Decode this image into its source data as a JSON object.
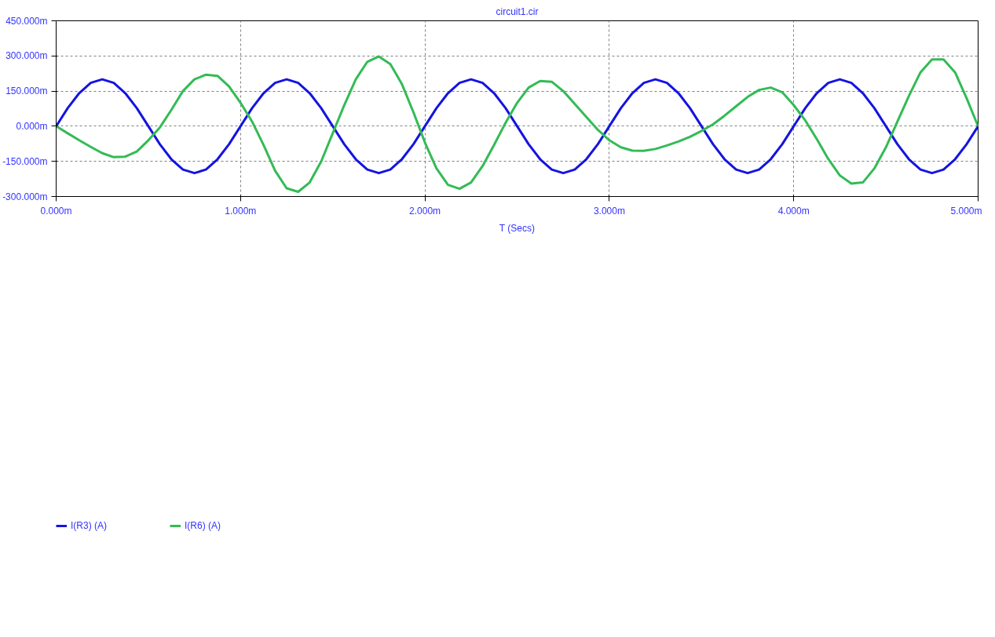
{
  "chart_data": {
    "type": "line",
    "title": "circuit1.cir",
    "xlabel": "T (Secs)",
    "x": [
      0,
      0.0625,
      0.125,
      0.1875,
      0.25,
      0.3125,
      0.375,
      0.4375,
      0.5,
      0.5625,
      0.625,
      0.6875,
      0.75,
      0.8125,
      0.875,
      0.9375,
      1,
      1.0625,
      1.125,
      1.1875,
      1.25,
      1.3125,
      1.375,
      1.4375,
      1.5,
      1.5625,
      1.625,
      1.6875,
      1.75,
      1.8125,
      1.875,
      1.9375,
      2,
      2.0625,
      2.125,
      2.1875,
      2.25,
      2.3125,
      2.375,
      2.4375,
      2.5,
      2.5625,
      2.625,
      2.6875,
      2.75,
      2.8125,
      2.875,
      2.9375,
      3,
      3.0625,
      3.125,
      3.1875,
      3.25,
      3.3125,
      3.375,
      3.4375,
      3.5,
      3.5625,
      3.625,
      3.6875,
      3.75,
      3.8125,
      3.875,
      3.9375,
      4,
      4.0625,
      4.125,
      4.1875,
      4.25,
      4.3125,
      4.375,
      4.4375,
      4.5,
      4.5625,
      4.625,
      4.6875,
      4.75,
      4.8125,
      4.875,
      4.9375,
      5
    ],
    "series": [
      {
        "name": "I(R3) (A)",
        "color": "#1414e0",
        "values": [
          0,
          77,
          141,
          185,
          200,
          185,
          141,
          77,
          0,
          -77,
          -141,
          -185,
          -200,
          -185,
          -141,
          -77,
          0,
          77,
          141,
          185,
          200,
          185,
          141,
          77,
          0,
          -77,
          -141,
          -185,
          -200,
          -185,
          -141,
          -77,
          0,
          77,
          141,
          185,
          200,
          185,
          141,
          77,
          0,
          -77,
          -141,
          -185,
          -200,
          -185,
          -141,
          -77,
          0,
          77,
          141,
          185,
          200,
          185,
          141,
          77,
          0,
          -77,
          -141,
          -185,
          -200,
          -185,
          -141,
          -77,
          0,
          77,
          141,
          185,
          200,
          185,
          141,
          77,
          0,
          -77,
          -141,
          -185,
          -200,
          -185,
          -141,
          -77,
          0
        ]
      },
      {
        "name": "I(R6) (A)",
        "color": "#33bb55",
        "values": [
          0,
          -30,
          -60,
          -88,
          -115,
          -132,
          -130,
          -108,
          -60,
          -5,
          70,
          150,
          200,
          220,
          215,
          170,
          100,
          20,
          -80,
          -190,
          -265,
          -280,
          -240,
          -150,
          -30,
          90,
          200,
          275,
          298,
          265,
          180,
          60,
          -70,
          -180,
          -250,
          -267,
          -240,
          -170,
          -80,
          15,
          100,
          165,
          193,
          190,
          150,
          95,
          40,
          -15,
          -60,
          -90,
          -104,
          -105,
          -97,
          -82,
          -65,
          -45,
          -20,
          8,
          45,
          85,
          125,
          155,
          165,
          145,
          90,
          25,
          -55,
          -140,
          -210,
          -245,
          -240,
          -180,
          -90,
          20,
          130,
          230,
          285,
          285,
          230,
          120,
          0
        ]
      }
    ],
    "xlim": [
      0,
      5
    ],
    "xticks": [
      {
        "value": 0,
        "label": "0.000m"
      },
      {
        "value": 1,
        "label": "1.000m"
      },
      {
        "value": 2,
        "label": "2.000m"
      },
      {
        "value": 3,
        "label": "3.000m"
      },
      {
        "value": 4,
        "label": "4.000m"
      },
      {
        "value": 5,
        "label": "5.000m"
      }
    ],
    "ylim": [
      -300,
      450
    ],
    "yticks": [
      {
        "value": -300,
        "label": "-300.000m"
      },
      {
        "value": -150,
        "label": "-150.000m"
      },
      {
        "value": 0,
        "label": "0.000m"
      },
      {
        "value": 150,
        "label": "150.000m"
      },
      {
        "value": 300,
        "label": "300.000m"
      },
      {
        "value": 450,
        "label": "450.000m"
      }
    ],
    "grid": true,
    "legend": "bottom",
    "marker": "none",
    "line_style": "solid"
  }
}
